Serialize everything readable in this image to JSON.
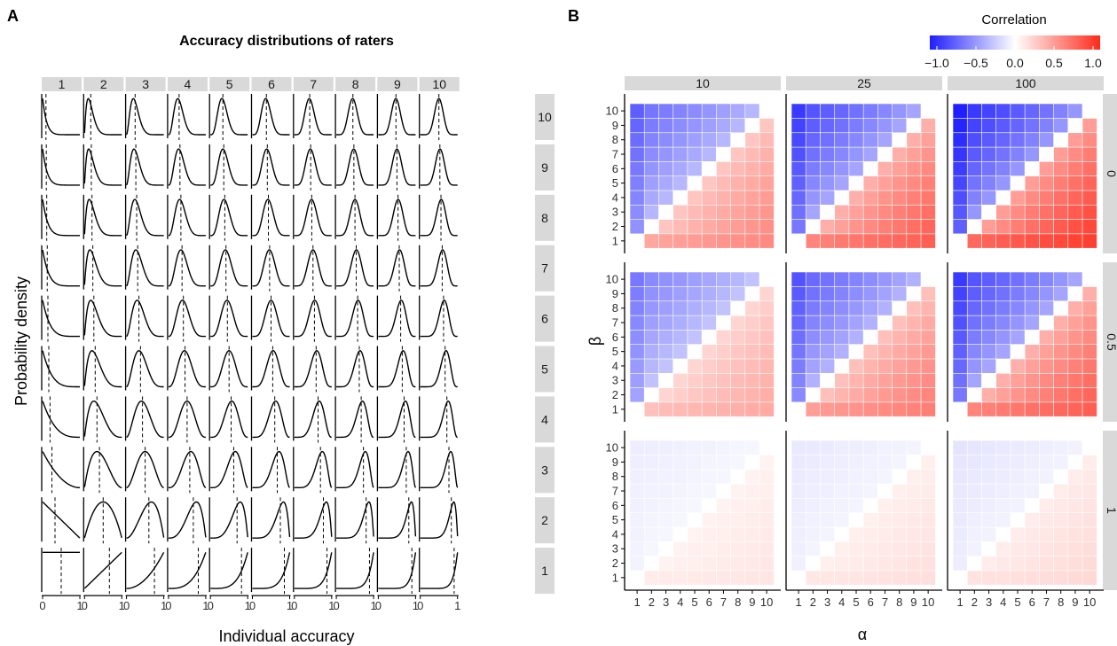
{
  "panel_a": {
    "letter": "A",
    "title": "Accuracy distributions of raters",
    "xlabel": "Individual accuracy",
    "ylabel": "Probability density",
    "x_tick_labels": [
      "0",
      "1"
    ],
    "col_strips": [
      "1",
      "2",
      "3",
      "4",
      "5",
      "6",
      "7",
      "8",
      "9",
      "10"
    ],
    "row_strips": [
      "10",
      "9",
      "8",
      "7",
      "6",
      "5",
      "4",
      "3",
      "2",
      "1"
    ]
  },
  "panel_b": {
    "letter": "B",
    "xlabel": "α",
    "ylabel": "β",
    "col_strips": [
      "10",
      "25",
      "100"
    ],
    "row_strips": [
      "0",
      "0.5",
      "1"
    ],
    "tick_labels": [
      "1",
      "2",
      "3",
      "4",
      "5",
      "6",
      "7",
      "8",
      "9",
      "10"
    ],
    "legend": {
      "title": "Correlation",
      "ticks": [
        "−1.0",
        "−0.5",
        "0.0",
        "0.5",
        "1.0"
      ],
      "low_color": "#1f1fff",
      "mid_color": "#ffffff",
      "high_color": "#ff2a1a"
    }
  },
  "chart_data": [
    {
      "type": "line",
      "description_of_facets": "Beta(α, β) density of individual accuracy on [0,1]; columns α = 1..10, rows β = 10..1 (top to bottom); dashed vertical line marks the mean α/(α+β)",
      "x": "individual accuracy",
      "xlim": [
        0,
        1
      ],
      "facet_columns_alpha": [
        1,
        2,
        3,
        4,
        5,
        6,
        7,
        8,
        9,
        10
      ],
      "facet_rows_beta": [
        10,
        9,
        8,
        7,
        6,
        5,
        4,
        3,
        2,
        1
      ],
      "reference_line": "mean",
      "y_axis_free": true
    },
    {
      "type": "heatmap",
      "x_values": [
        1,
        2,
        3,
        4,
        5,
        6,
        7,
        8,
        9,
        10
      ],
      "y_values": [
        1,
        2,
        3,
        4,
        5,
        6,
        7,
        8,
        9,
        10
      ],
      "facet_columns": [
        "10",
        "25",
        "100"
      ],
      "facet_rows": [
        "0",
        "0.5",
        "1"
      ],
      "fill_range": [
        -1,
        1
      ],
      "diagonal_value": 0,
      "panels": [
        {
          "col": "10",
          "row": "0",
          "lower_left": 0.55,
          "upper_right": -0.65,
          "gamma": 0.8,
          "axis": 0.8
        },
        {
          "col": "25",
          "row": "0",
          "lower_left": 0.75,
          "upper_right": -0.8,
          "gamma": 0.7,
          "axis": 0.9
        },
        {
          "col": "100",
          "row": "0",
          "lower_left": 0.9,
          "upper_right": -0.92,
          "gamma": 0.5,
          "axis": 0.95
        },
        {
          "col": "10",
          "row": "0.5",
          "lower_left": 0.4,
          "upper_right": -0.55,
          "gamma": 0.9,
          "axis": 0.8
        },
        {
          "col": "25",
          "row": "0.5",
          "lower_left": 0.6,
          "upper_right": -0.7,
          "gamma": 0.8,
          "axis": 0.9
        },
        {
          "col": "100",
          "row": "0.5",
          "lower_left": 0.75,
          "upper_right": -0.8,
          "gamma": 0.7,
          "axis": 0.95
        },
        {
          "col": "10",
          "row": "1",
          "lower_left": 0.12,
          "upper_right": -0.08,
          "gamma": 1.5,
          "axis": 0.3
        },
        {
          "col": "25",
          "row": "1",
          "lower_left": 0.15,
          "upper_right": -0.1,
          "gamma": 1.5,
          "axis": 0.3
        },
        {
          "col": "100",
          "row": "1",
          "lower_left": 0.18,
          "upper_right": -0.12,
          "gamma": 1.5,
          "axis": 0.3
        }
      ]
    }
  ]
}
